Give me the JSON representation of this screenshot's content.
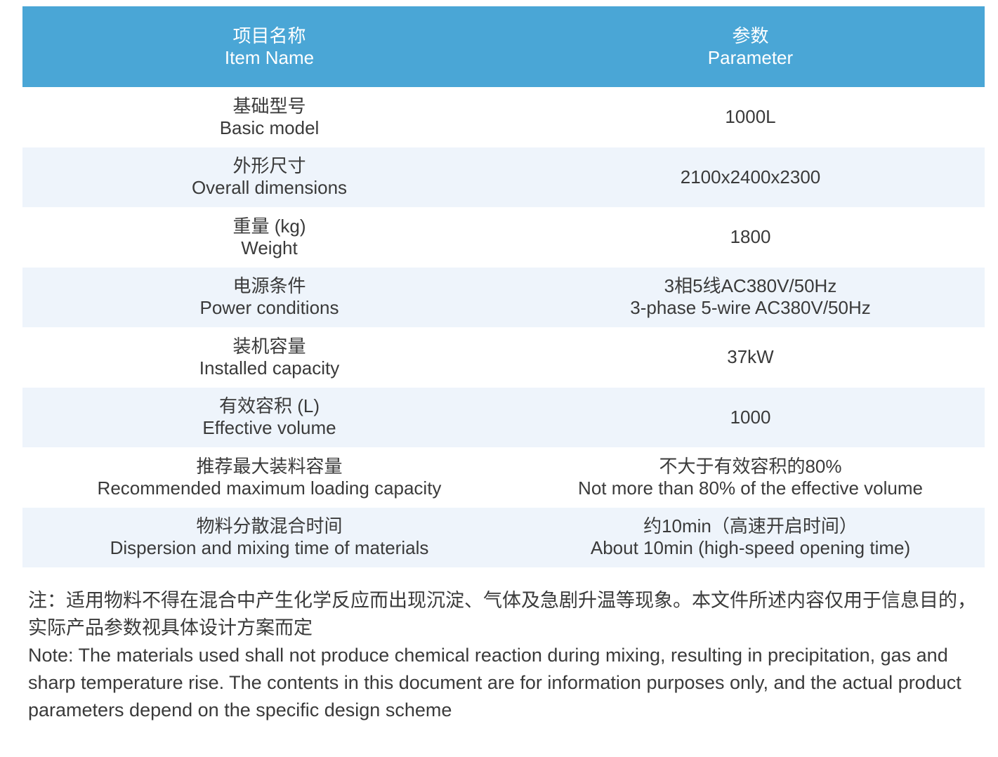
{
  "colors": {
    "header_bg": "#4aa6d6",
    "alt_row_bg": "#eef4fb",
    "text": "#3a3a3a"
  },
  "header": {
    "col1_zh": "项目名称",
    "col1_en": "Item Name",
    "col2_zh": "参数",
    "col2_en": "Parameter"
  },
  "rows": [
    {
      "name_zh": "基础型号",
      "name_en": "Basic model",
      "value_1": "1000L",
      "value_2": ""
    },
    {
      "name_zh": "外形尺寸",
      "name_en": "Overall dimensions",
      "value_1": "2100x2400x2300",
      "value_2": ""
    },
    {
      "name_zh": "重量 (kg)",
      "name_en": "Weight",
      "value_1": "1800",
      "value_2": ""
    },
    {
      "name_zh": "电源条件",
      "name_en": "Power conditions",
      "value_1": "3相5线AC380V/50Hz",
      "value_2": "3-phase 5-wire AC380V/50Hz"
    },
    {
      "name_zh": "装机容量",
      "name_en": "Installed capacity",
      "value_1": "37kW",
      "value_2": ""
    },
    {
      "name_zh": "有效容积 (L)",
      "name_en": "Effective volume",
      "value_1": "1000",
      "value_2": ""
    },
    {
      "name_zh": "推荐最大装料容量",
      "name_en": "Recommended maximum loading capacity",
      "value_1": "不大于有效容积的80%",
      "value_2": "Not more than 80% of the effective volume"
    },
    {
      "name_zh": "物料分散混合时间",
      "name_en": "Dispersion and mixing time of materials",
      "value_1": "约10min（高速开启时间）",
      "value_2": "About 10min (high-speed opening time)"
    }
  ],
  "note": {
    "zh": "注：适用物料不得在混合中产生化学反应而出现沉淀、气体及急剧升温等现象。本文件所述内容仅用于信息目的，实际产品参数视具体设计方案而定",
    "en": "Note: The materials used shall not produce chemical reaction during mixing, resulting in precipitation, gas and sharp temperature rise. The contents in this document are for information purposes only, and the actual product parameters depend on the specific design scheme"
  }
}
